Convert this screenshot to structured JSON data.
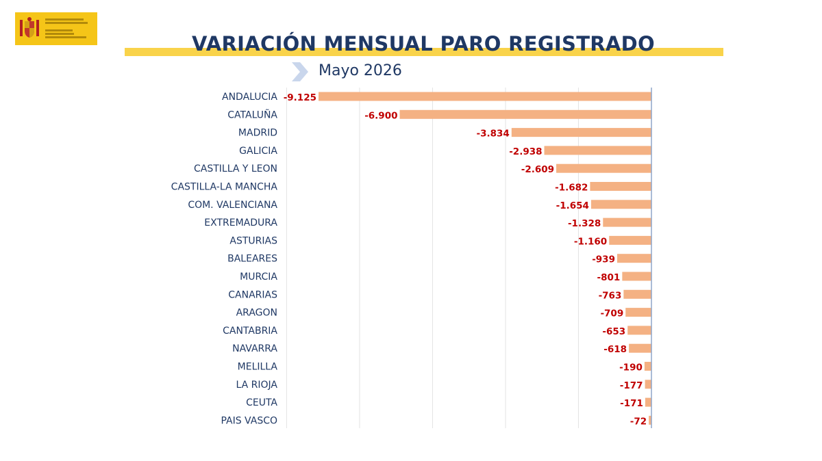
{
  "logo": {
    "lines": [
      "VICEPRESIDENCIA",
      "SEGUNDA DEL GOBIERNO",
      "MINISTERIO",
      "DE TRABAJO",
      "Y ECONOMÍA SOCIAL"
    ]
  },
  "header": {
    "title": "VARIACIÓN MENSUAL PARO REGISTRADO",
    "subtitle": "Mayo 2026"
  },
  "colors": {
    "bar": "#f4b183",
    "title": "#1f3864",
    "value_label": "#c00000",
    "accent_bar": "#f9d34a",
    "logo_bg": "#f5c518"
  },
  "chart_data": {
    "type": "bar",
    "orientation": "horizontal",
    "categories": [
      "ANDALUCIA",
      "CATALUÑA",
      "MADRID",
      "GALICIA",
      "CASTILLA Y LEON",
      "CASTILLA-LA MANCHA",
      "COM. VALENCIANA",
      "EXTREMADURA",
      "ASTURIAS",
      "BALEARES",
      "MURCIA",
      "CANARIAS",
      "ARAGON",
      "CANTABRIA",
      "NAVARRA",
      "MELILLA",
      "LA RIOJA",
      "CEUTA",
      "PAIS VASCO"
    ],
    "values": [
      -9125,
      -6900,
      -3834,
      -2938,
      -2609,
      -1682,
      -1654,
      -1328,
      -1160,
      -939,
      -801,
      -763,
      -709,
      -653,
      -618,
      -190,
      -177,
      -171,
      -72
    ],
    "value_labels": [
      "-9.125",
      "-6.900",
      "-3.834",
      "-2.938",
      "-2.609",
      "-1.682",
      "-1.654",
      "-1.328",
      "-1.160",
      "-939",
      "-801",
      "-763",
      "-709",
      "-653",
      "-618",
      "-190",
      "-177",
      "-171",
      "-72"
    ],
    "xlim": [
      -10000,
      0
    ],
    "grid": true,
    "legend": "none",
    "title": "",
    "xlabel": "",
    "ylabel": ""
  }
}
